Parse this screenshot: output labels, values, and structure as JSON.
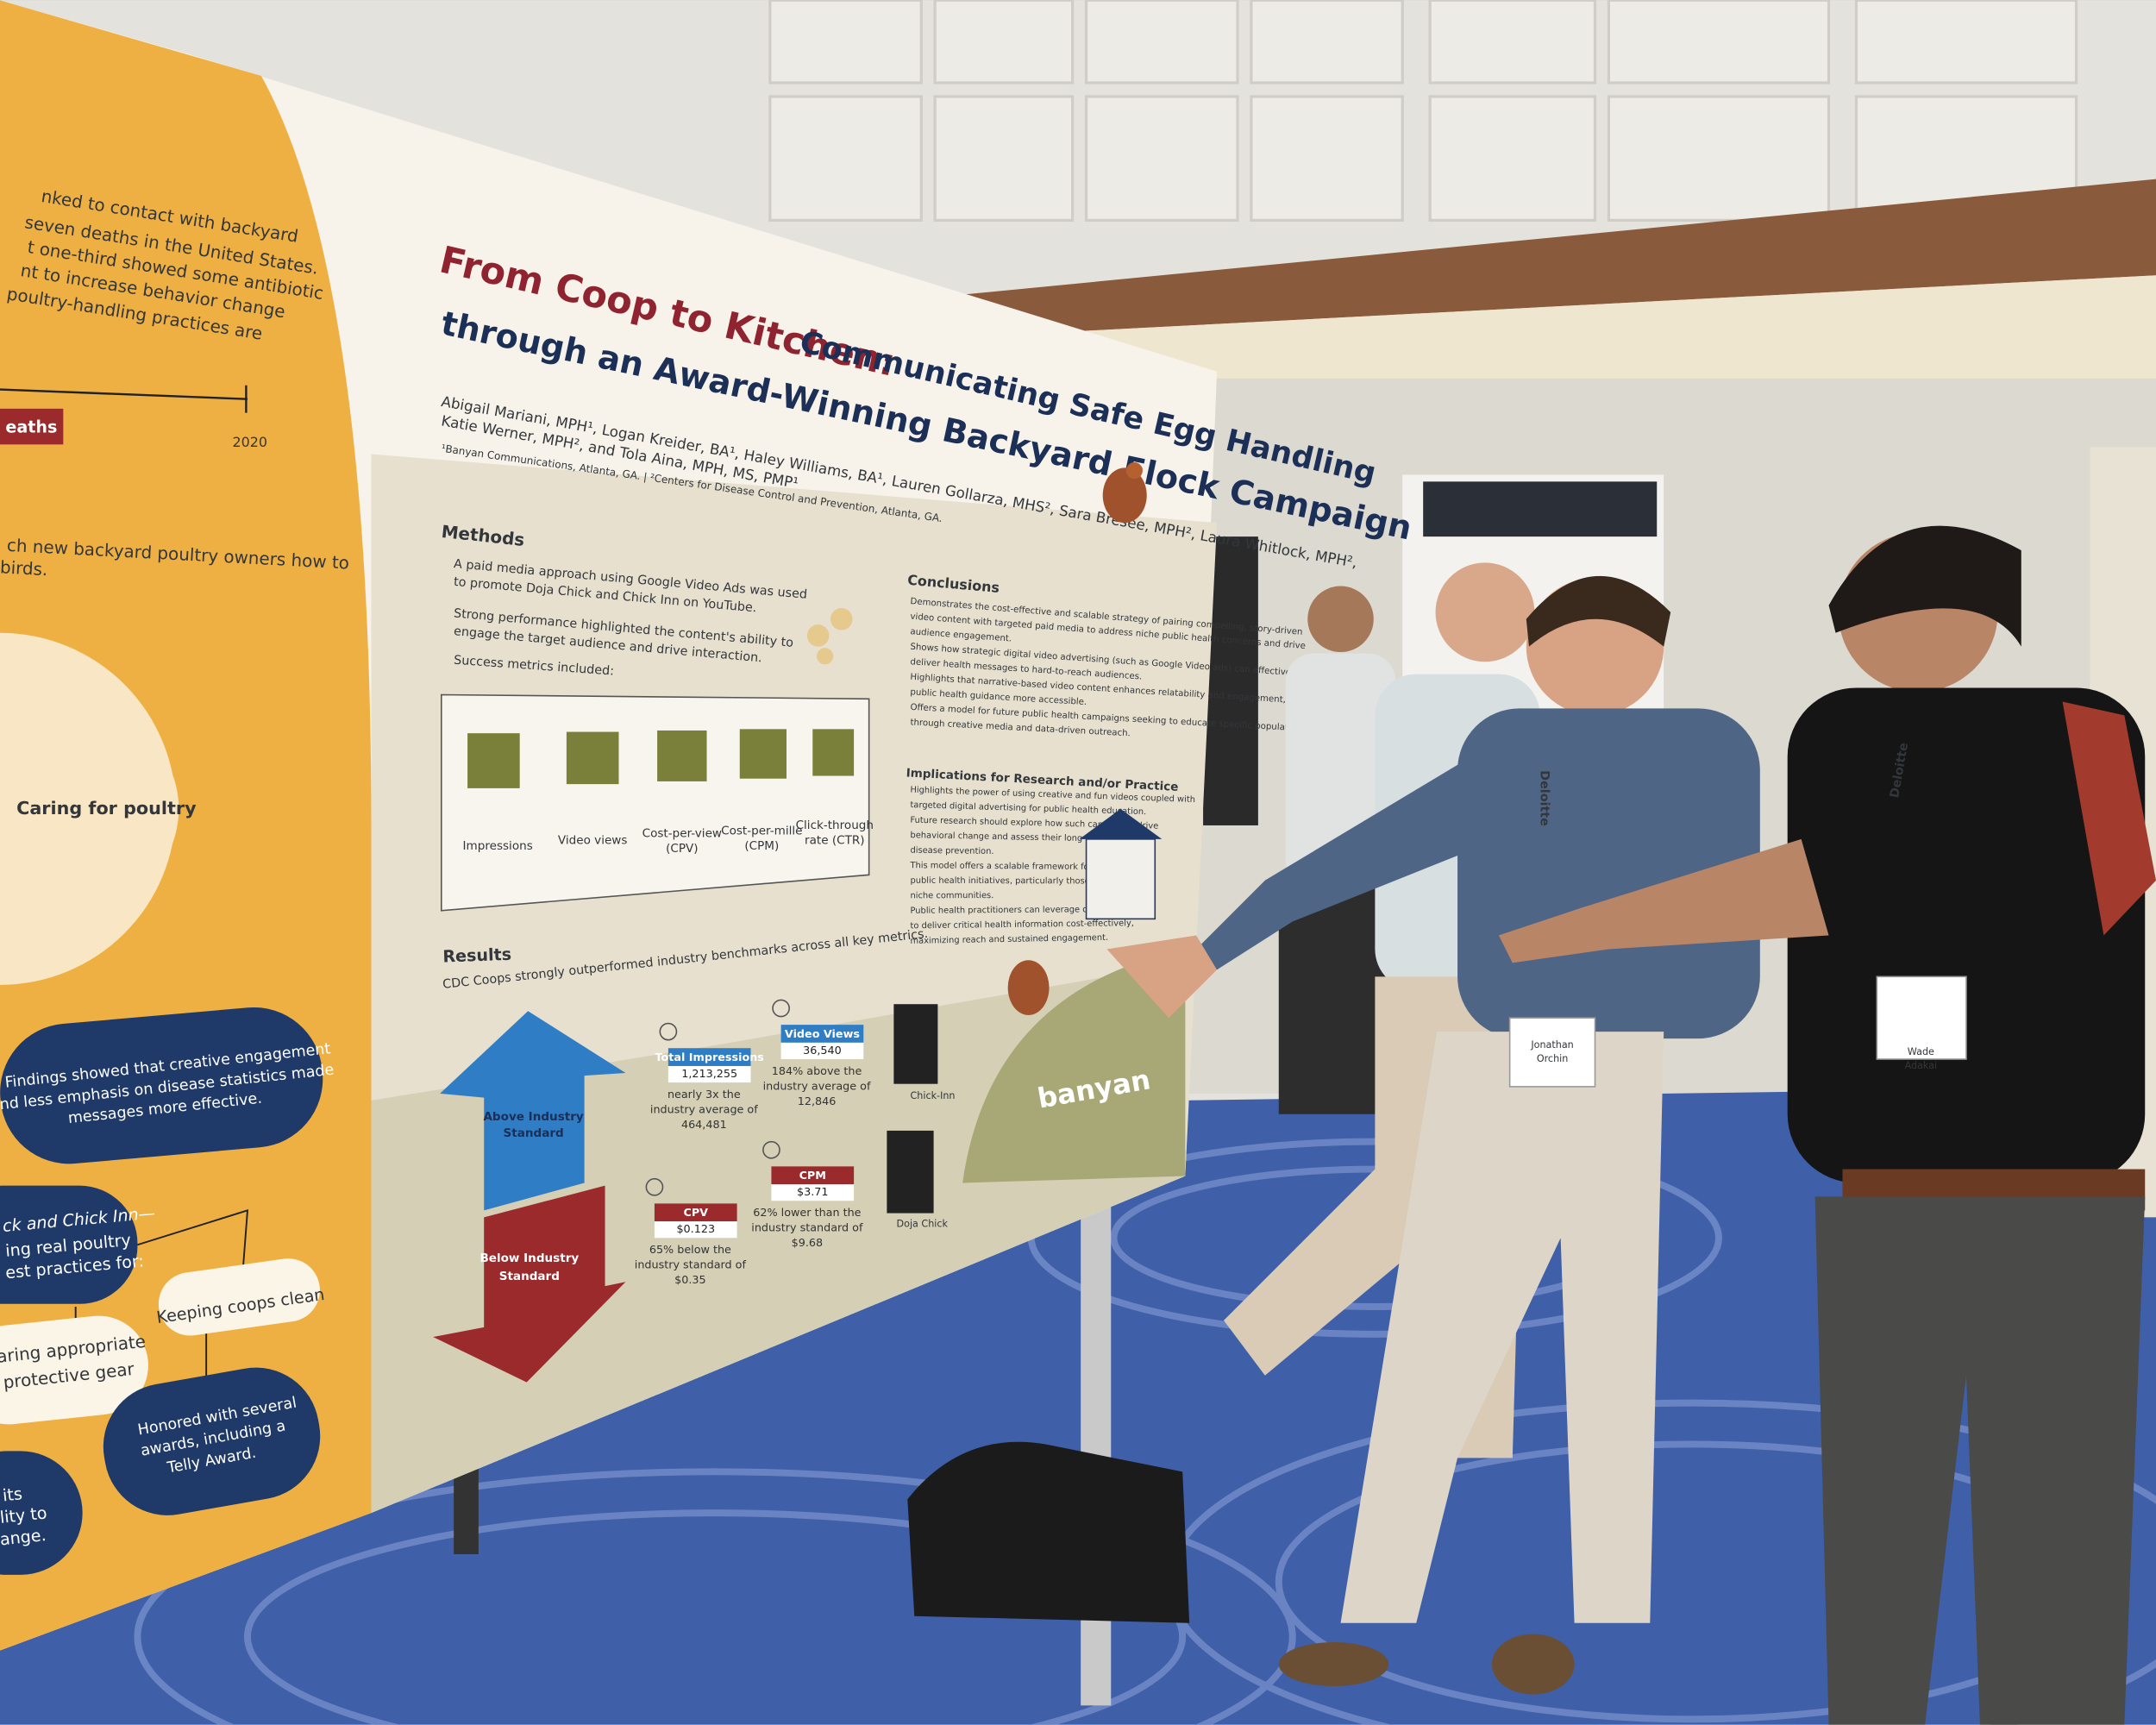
{
  "poster": {
    "title_red": "From Coop to Kitchen:",
    "title_navy": "Communicating Safe Egg Handling",
    "title_line2": "through an Award-Winning Backyard Flock Campaign",
    "authors": [
      "Abigail Mariani, MPH¹, Logan Kreider, BA¹, Haley Williams, BA¹, Lauren Gollarza, MHS², Sara Bresee, MPH², Laura Whitlock, MPH²,",
      "Katie Werner, MPH², and Tola Aina, MPH, MS, PMP¹"
    ],
    "affiliations": "¹Banyan Communications, Atlanta, GA.  |  ²Centers for Disease Control and Prevention, Atlanta, GA.",
    "methods": {
      "heading": "Methods",
      "bullets": [
        [
          "A paid media approach using Google Video Ads was used",
          "to promote Doja Chick and Chick Inn on YouTube."
        ],
        [
          "Strong performance highlighted the content's ability to",
          "engage the target audience and drive interaction."
        ],
        [
          "Success metrics included:"
        ]
      ],
      "metrics": [
        [
          "Impressions"
        ],
        [
          "Video views"
        ],
        [
          "Cost-per-view",
          "(CPV)"
        ],
        [
          "Cost-per-mille",
          "(CPM)"
        ],
        [
          "Click-through",
          "rate (CTR)"
        ]
      ]
    },
    "conclusions": {
      "heading": "Conclusions",
      "lines": [
        "Demonstrates the cost-effective and scalable strategy of pairing compelling, story-driven",
        "video content with targeted paid media to address niche public health concerns and drive",
        "audience engagement.",
        "Shows how strategic digital video advertising (such as Google Video ads) can effectively",
        "deliver health messages to hard-to-reach audiences.",
        "Highlights that narrative-based video content enhances relatability and engagement, making",
        "public health guidance more accessible.",
        "Offers a model for future public health campaigns seeking to educate specific populations",
        "through creative media and data-driven outreach."
      ]
    },
    "implications": {
      "heading": "Implications for Research and/or Practice",
      "lines": [
        "Highlights the power of using creative and fun videos coupled with",
        "targeted digital advertising for public health education.",
        "Future research should explore how such campaigns drive",
        "behavioral change and assess their long-term impact on",
        "disease prevention.",
        "This model offers a scalable framework for other",
        "public health initiatives, particularly those targeting",
        "niche communities.",
        "Public health practitioners can leverage digital media",
        "to deliver critical health information cost-effectively,",
        "maximizing reach and sustained engagement."
      ]
    },
    "results": {
      "heading": "Results",
      "summary": "CDC Coops strongly outperformed industry benchmarks across all key metrics.",
      "above": [
        "Above Industry",
        "Standard"
      ],
      "below": [
        "Below Industry",
        "Standard"
      ],
      "stats": [
        {
          "label": "Total Impressions",
          "value": "1,213,255",
          "note": [
            "nearly 3x the",
            "industry average of",
            "464,481"
          ]
        },
        {
          "label": "Video Views",
          "value": "36,540",
          "note": [
            "184% above the",
            "industry average of",
            "12,846"
          ]
        },
        {
          "label": "CPV",
          "value": "$0.123",
          "note": [
            "65% below the",
            "industry standard of",
            "$0.35"
          ]
        },
        {
          "label": "CPM",
          "value": "$3.71",
          "note": [
            "62% lower than the",
            "industry standard of",
            "$9.68"
          ]
        }
      ],
      "qr_labels": [
        "Chick-Inn",
        "Doja Chick"
      ]
    },
    "logo": "banyan",
    "left_panel": {
      "intro": [
        "nked to contact with backyard",
        "seven deaths in the United States.",
        "t one-third showed some antibiotic",
        "nt to increase behavior change",
        "poultry-handling practices are"
      ],
      "tag": "eaths",
      "year": "2020",
      "teach": [
        "ch new backyard poultry owners how to",
        "birds."
      ],
      "circle": "Caring for poultry",
      "findings": [
        "Findings showed that creative engagement",
        "and less emphasis on disease statistics made",
        "messages more effective."
      ],
      "videos": [
        "ck and Chick Inn—",
        "ing real poultry",
        "est practices for:"
      ],
      "coops": "Keeping coops clean",
      "gear": [
        "earing appropriate",
        "protective gear"
      ],
      "awards": [
        "Honored with several",
        "awards, including a",
        "Telly Award."
      ],
      "cut": [
        "its",
        "lity to",
        "ange."
      ]
    }
  },
  "badges": [
    {
      "name": "Jonathan",
      "surname": "Orchin"
    },
    {
      "name": "Wade",
      "surname": "Adakai"
    }
  ],
  "lanyard": "Deloitte"
}
